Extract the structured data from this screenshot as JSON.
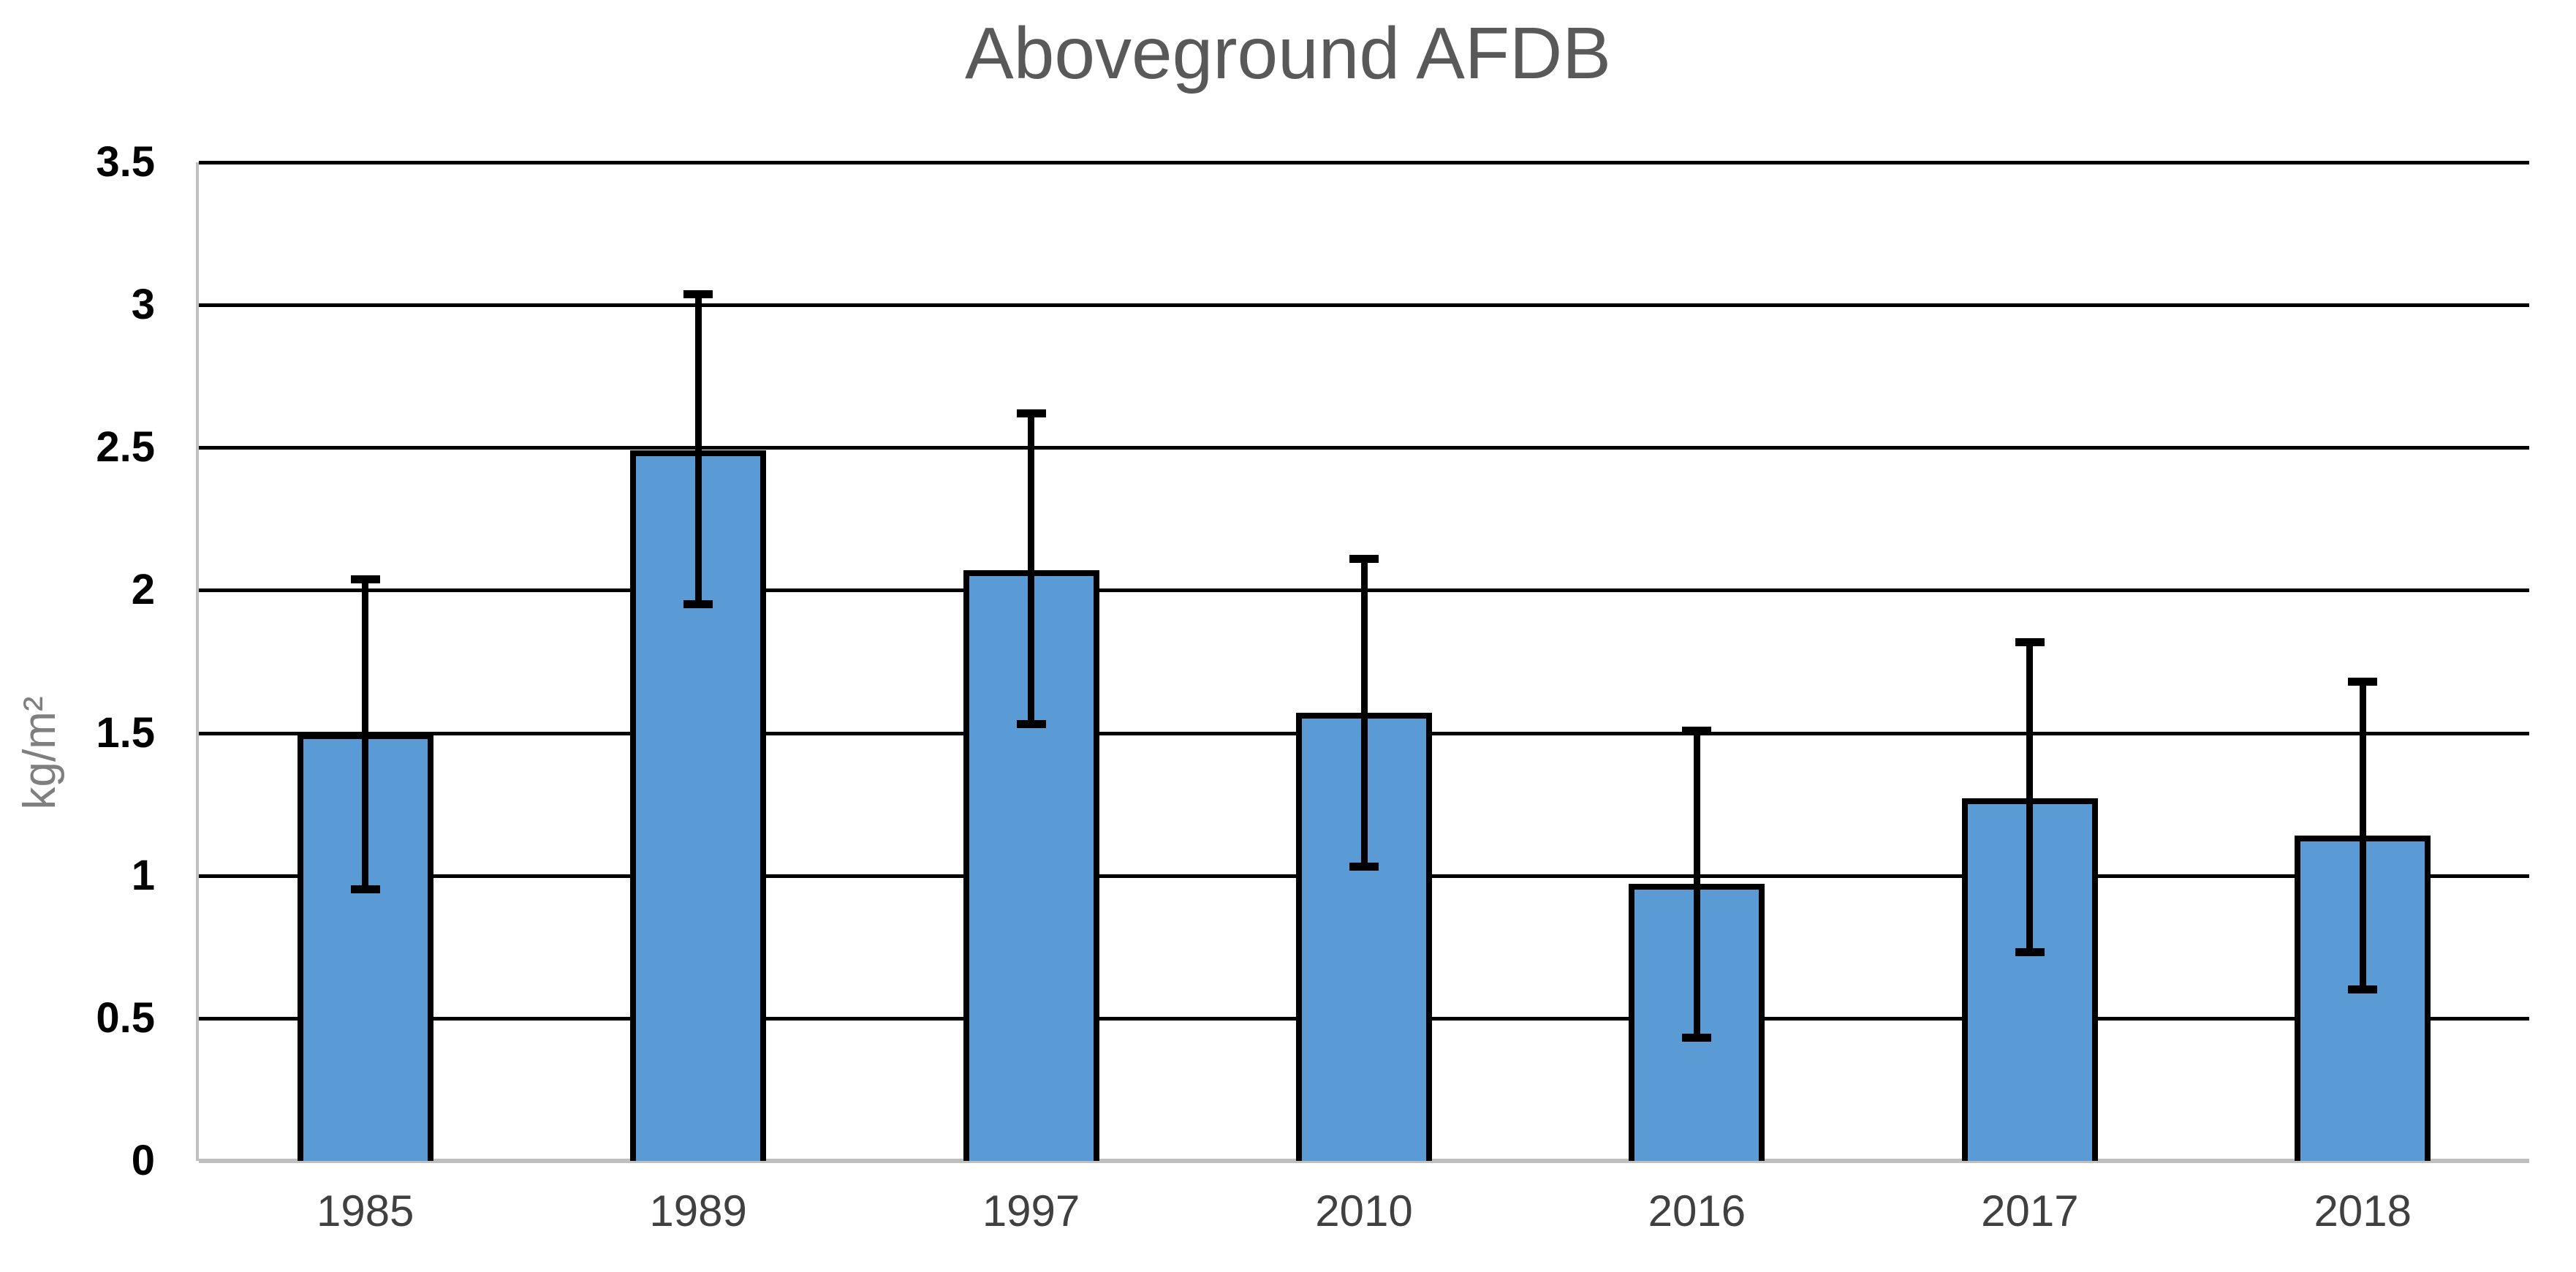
{
  "title": "Aboveground AFDB",
  "y_axis": {
    "label": "kg/m²",
    "tick_labels": [
      "3.5",
      "3",
      "2.5",
      "2",
      "1.5",
      "1",
      "0.5",
      "0"
    ]
  },
  "chart_data": {
    "type": "bar",
    "title": "Aboveground AFDB",
    "categories": [
      "1985",
      "1989",
      "1997",
      "2010",
      "2016",
      "2017",
      "2018"
    ],
    "values": [
      1.5,
      2.49,
      2.07,
      1.57,
      0.97,
      1.27,
      1.14
    ],
    "error_low": [
      0.95,
      1.95,
      1.53,
      1.03,
      0.43,
      0.73,
      0.6
    ],
    "error_high": [
      2.04,
      3.04,
      2.62,
      2.11,
      1.51,
      1.82,
      1.68
    ],
    "xlabel": "",
    "ylabel": "kg/m²",
    "ylim": [
      0,
      3.5
    ],
    "yticks": [
      3.5,
      3,
      2.5,
      2,
      1.5,
      1,
      0.5,
      0
    ],
    "ytick_labels": [
      "3.5",
      "3",
      "2.5",
      "2",
      "1.5",
      "1",
      "0.5",
      "0"
    ],
    "grid": "horizontal-only",
    "legend": "none",
    "colors": {
      "bar_fill": "#5B9BD5",
      "bar_border": "#000000",
      "error_bar": "#000000",
      "gridline": "#000000",
      "axis_line": "#BFBFBF",
      "title": "#595959",
      "y_axis_label": "#7F7F7F",
      "y_tick_label": "#000000",
      "x_tick_label": "#404040",
      "background": "#FFFFFF"
    }
  }
}
